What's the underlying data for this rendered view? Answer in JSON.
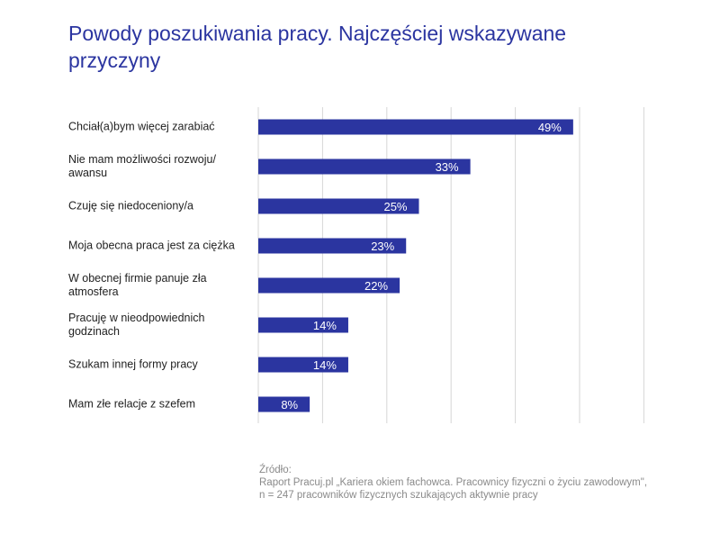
{
  "title": "Powody poszukiwania pracy. Najczęściej wskazywane przyczyny",
  "chart_data": {
    "type": "bar",
    "orientation": "horizontal",
    "title": "Powody poszukiwania pracy. Najczęściej wskazywane przyczyny",
    "categories": [
      "Chciał(a)bym więcej zarabiać",
      "Nie mam możliwości rozwoju/ awansu",
      "Czuję się niedoceniony/a",
      "Moja obecna praca jest za ciężka",
      "W obecnej firmie panuje zła atmosfera",
      "Pracuję w nieodpowiednich godzinach",
      "Szukam innej formy pracy",
      "Mam złe relacje z szefem"
    ],
    "values": [
      49,
      33,
      25,
      23,
      22,
      14,
      14,
      8
    ],
    "value_labels": [
      "49%",
      "33%",
      "25%",
      "23%",
      "22%",
      "14%",
      "14%",
      "8%"
    ],
    "xlim": [
      0,
      60
    ],
    "grid": true,
    "legend": false,
    "bar_color": "#2b35a0"
  },
  "source": {
    "heading": "Źródło:",
    "line1": "Raport Pracuj.pl „Kariera okiem fachowca. Pracownicy fizyczni o życiu zawodowym\",",
    "line2": "n = 247 pracowników fizycznych szukających aktywnie pracy"
  },
  "colors": {
    "accent": "#2b35a0",
    "gridline": "#d6d6d6",
    "text": "#222222",
    "muted": "#8a8a8a"
  }
}
